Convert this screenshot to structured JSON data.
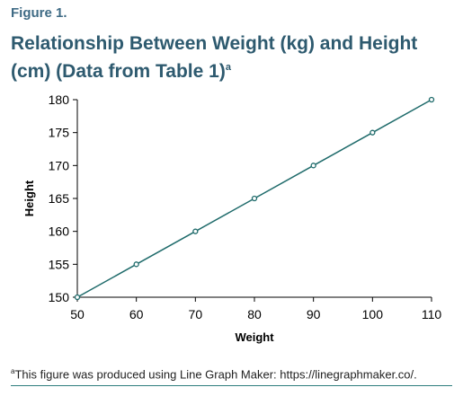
{
  "figure": {
    "label": "Figure 1.",
    "title": "Relationship Between Weight (kg) and Height (cm) (Data from Table 1)",
    "title_marker": "a",
    "footnote_marker": "a",
    "footnote": "This figure was produced using Line Graph Maker: https://linegraphmaker.co/."
  },
  "colors": {
    "title": "#2e5a6f",
    "line": "#1f6b6b",
    "accent_rule": "#2e7d7d"
  },
  "chart_data": {
    "type": "line",
    "title": "",
    "xlabel": "Weight",
    "ylabel": "Height",
    "x": [
      50,
      60,
      70,
      80,
      90,
      100,
      110
    ],
    "series": [
      {
        "values": [
          150,
          155,
          160,
          165,
          170,
          175,
          180
        ]
      }
    ],
    "xlim": [
      50,
      110
    ],
    "ylim": [
      150,
      180
    ],
    "xticks": [
      "50",
      "60",
      "70",
      "80",
      "90",
      "100",
      "110"
    ],
    "yticks": [
      "150",
      "155",
      "160",
      "165",
      "170",
      "175",
      "180"
    ],
    "grid": false,
    "markers": "open-circle"
  }
}
